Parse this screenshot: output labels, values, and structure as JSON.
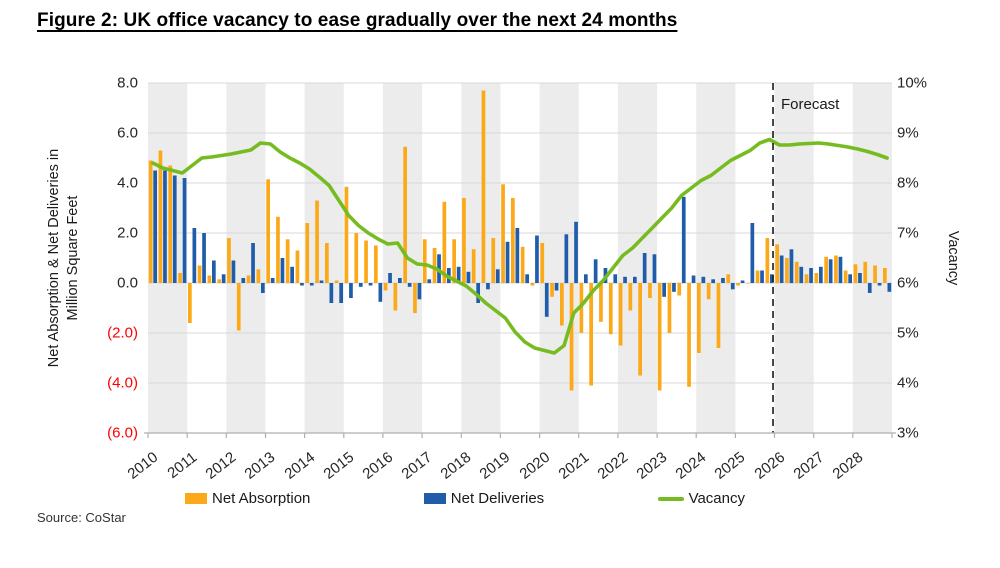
{
  "title": "Figure 2: UK office vacancy to ease gradually over the next 24 months",
  "source": "Source: CoStar",
  "forecast_label": "Forecast",
  "axes": {
    "left_title": "Net Absorption & Net Deliveries in Million Square Feet",
    "left_ticks": [
      "8.0",
      "6.0",
      "4.0",
      "2.0",
      "0.0",
      "(2.0)",
      "(4.0)",
      "(6.0)"
    ],
    "right_title": "Vacancy",
    "right_ticks": [
      "10%",
      "9%",
      "8%",
      "7%",
      "6%",
      "5%",
      "4%",
      "3%"
    ],
    "years": [
      "2010",
      "2011",
      "2012",
      "2013",
      "2014",
      "2015",
      "2016",
      "2017",
      "2018",
      "2019",
      "2020",
      "2021",
      "2022",
      "2023",
      "2024",
      "2025",
      "2026",
      "2027",
      "2028"
    ]
  },
  "colors": {
    "net_absorption": "#FBA819",
    "net_deliveries": "#1F5CA9",
    "vacancy": "#76BC21",
    "gridline": "#D9D9D9",
    "year_band": "#ECECEC",
    "axis_line": "#AFAFAF",
    "negative_tick": "#FF0000",
    "forecast_divider": "#1a1a1a"
  },
  "chart_data": {
    "type": "bar",
    "subtype": "grouped bars (left axis, million sq ft) + line (right axis, vacancy %)",
    "title": "Figure 2: UK office vacancy to ease gradually over the next 24 months",
    "xlabel": "",
    "ylabel_left": "Net Absorption & Net Deliveries in Million Square Feet",
    "ylabel_right": "Vacancy",
    "left_axis_range": [
      -6,
      8
    ],
    "left_axis_step": 2,
    "right_axis_range_pct": [
      3,
      10
    ],
    "grid": true,
    "legend_position": "bottom",
    "forecast_start_index": 64,
    "forecast_start_label": "2026 Q1",
    "categories": [
      "2010 Q1",
      "2010 Q2",
      "2010 Q3",
      "2010 Q4",
      "2011 Q1",
      "2011 Q2",
      "2011 Q3",
      "2011 Q4",
      "2012 Q1",
      "2012 Q2",
      "2012 Q3",
      "2012 Q4",
      "2013 Q1",
      "2013 Q2",
      "2013 Q3",
      "2013 Q4",
      "2014 Q1",
      "2014 Q2",
      "2014 Q3",
      "2014 Q4",
      "2015 Q1",
      "2015 Q2",
      "2015 Q3",
      "2015 Q4",
      "2016 Q1",
      "2016 Q2",
      "2016 Q3",
      "2016 Q4",
      "2017 Q1",
      "2017 Q2",
      "2017 Q3",
      "2017 Q4",
      "2018 Q1",
      "2018 Q2",
      "2018 Q3",
      "2018 Q4",
      "2019 Q1",
      "2019 Q2",
      "2019 Q3",
      "2019 Q4",
      "2020 Q1",
      "2020 Q2",
      "2020 Q3",
      "2020 Q4",
      "2021 Q1",
      "2021 Q2",
      "2021 Q3",
      "2021 Q4",
      "2022 Q1",
      "2022 Q2",
      "2022 Q3",
      "2022 Q4",
      "2023 Q1",
      "2023 Q2",
      "2023 Q3",
      "2023 Q4",
      "2024 Q1",
      "2024 Q2",
      "2024 Q3",
      "2024 Q4",
      "2025 Q1",
      "2025 Q2",
      "2025 Q3",
      "2025 Q4",
      "2026 Q1",
      "2026 Q2",
      "2026 Q3",
      "2026 Q4",
      "2027 Q1",
      "2027 Q2",
      "2027 Q3",
      "2027 Q4",
      "2028 Q1",
      "2028 Q2",
      "2028 Q3",
      "2028 Q4"
    ],
    "series": [
      {
        "name": "Net Absorption",
        "type": "bar",
        "axis": "left",
        "color": "#FBA819",
        "values": [
          4.9,
          5.3,
          4.7,
          0.4,
          -1.6,
          0.7,
          0.3,
          0.15,
          1.8,
          -1.9,
          0.3,
          0.55,
          4.15,
          2.65,
          1.75,
          1.3,
          2.4,
          3.3,
          1.6,
          0.1,
          3.85,
          2.0,
          1.7,
          1.5,
          -0.3,
          -1.1,
          5.45,
          -1.2,
          1.75,
          1.4,
          3.25,
          1.75,
          3.4,
          1.35,
          7.7,
          1.8,
          3.95,
          3.4,
          1.45,
          -0.1,
          1.6,
          -0.55,
          -1.7,
          -4.3,
          -2.0,
          -4.1,
          -1.55,
          -2.05,
          -2.5,
          -1.1,
          -3.7,
          -0.6,
          -4.3,
          -2.0,
          -0.5,
          -4.15,
          -2.8,
          -0.65,
          -2.6,
          0.35,
          -0.1,
          0.0,
          0.5,
          1.8,
          1.55,
          1.0,
          0.85,
          0.35,
          0.4,
          1.05,
          1.1,
          0.5,
          0.75,
          0.85,
          0.7,
          0.6
        ]
      },
      {
        "name": "Net Deliveries",
        "type": "bar",
        "axis": "left",
        "color": "#1F5CA9",
        "values": [
          4.5,
          4.5,
          4.3,
          4.2,
          2.2,
          2.0,
          0.9,
          0.35,
          0.9,
          0.2,
          1.6,
          -0.4,
          0.2,
          1.0,
          0.65,
          -0.1,
          -0.1,
          0.1,
          -0.8,
          -0.8,
          -0.6,
          -0.15,
          -0.1,
          -0.75,
          0.4,
          0.2,
          -0.15,
          -0.65,
          0.15,
          1.15,
          0.6,
          0.65,
          0.45,
          -0.8,
          -0.25,
          0.55,
          1.65,
          2.2,
          0.35,
          1.9,
          -1.35,
          -0.3,
          1.95,
          2.45,
          0.35,
          0.95,
          0.6,
          0.35,
          0.25,
          0.25,
          1.2,
          1.15,
          -0.55,
          -0.35,
          3.45,
          0.3,
          0.25,
          0.15,
          0.2,
          -0.25,
          0.1,
          2.4,
          0.5,
          0.35,
          1.1,
          1.35,
          0.65,
          0.6,
          0.65,
          0.95,
          1.05,
          0.35,
          0.4,
          -0.4,
          -0.1,
          -0.35
        ]
      },
      {
        "name": "Vacancy",
        "type": "line",
        "axis": "right",
        "unit": "%",
        "color": "#76BC21",
        "values": [
          8.4,
          8.3,
          8.25,
          8.2,
          8.35,
          8.5,
          8.52,
          8.55,
          8.58,
          8.62,
          8.66,
          8.8,
          8.78,
          8.62,
          8.5,
          8.4,
          8.28,
          8.12,
          7.95,
          7.65,
          7.35,
          7.15,
          7.0,
          6.88,
          6.78,
          6.8,
          6.5,
          6.38,
          6.36,
          6.28,
          6.14,
          6.04,
          5.94,
          5.78,
          5.6,
          5.45,
          5.3,
          5.02,
          4.82,
          4.7,
          4.65,
          4.6,
          4.75,
          5.4,
          5.6,
          5.85,
          6.05,
          6.3,
          6.55,
          6.7,
          6.9,
          7.1,
          7.3,
          7.5,
          7.75,
          7.9,
          8.05,
          8.15,
          8.3,
          8.45,
          8.55,
          8.65,
          8.8,
          8.87,
          8.76,
          8.76,
          8.78,
          8.79,
          8.8,
          8.78,
          8.75,
          8.72,
          8.68,
          8.63,
          8.57,
          8.5
        ]
      }
    ]
  }
}
